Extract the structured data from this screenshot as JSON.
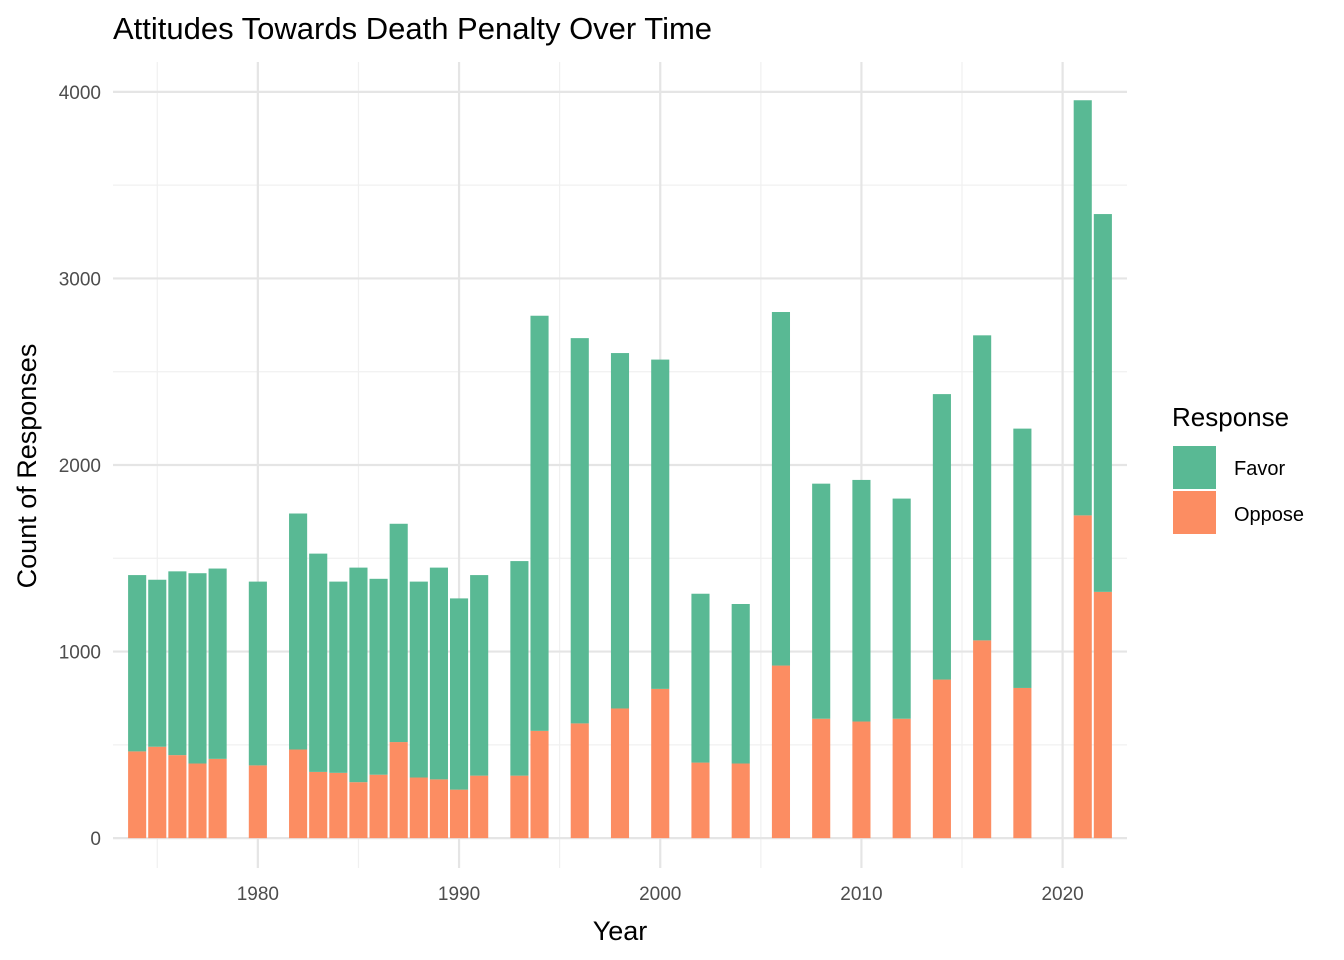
{
  "chart_data": {
    "type": "bar",
    "stacked": true,
    "title": "Attitudes Towards Death Penalty Over Time",
    "xlabel": "Year",
    "ylabel": "Count of Responses",
    "x": [
      1974,
      1975,
      1976,
      1977,
      1978,
      1980,
      1982,
      1983,
      1984,
      1985,
      1986,
      1987,
      1988,
      1989,
      1990,
      1991,
      1993,
      1994,
      1996,
      1998,
      2000,
      2002,
      2004,
      2006,
      2008,
      2010,
      2012,
      2014,
      2016,
      2018,
      2021,
      2022
    ],
    "series": [
      {
        "name": "Oppose",
        "color": "#fc8d62",
        "values": [
          465,
          490,
          445,
          400,
          425,
          390,
          475,
          355,
          350,
          300,
          340,
          515,
          325,
          315,
          260,
          335,
          335,
          575,
          615,
          695,
          800,
          405,
          400,
          925,
          640,
          625,
          640,
          850,
          1060,
          805,
          1730,
          1320
        ]
      },
      {
        "name": "Favor",
        "color": "#59b994",
        "values": [
          945,
          895,
          985,
          1020,
          1020,
          985,
          1265,
          1170,
          1025,
          1150,
          1050,
          1170,
          1050,
          1135,
          1025,
          1075,
          1150,
          2225,
          2065,
          1905,
          1765,
          905,
          855,
          1895,
          1260,
          1295,
          1180,
          1530,
          1635,
          1390,
          2225,
          2025
        ]
      }
    ],
    "xlim": [
      1972.8,
      2023.2
    ],
    "ylim": [
      -160,
      4160
    ],
    "x_ticks": [
      "1980",
      "1990",
      "2000",
      "2010",
      "2020"
    ],
    "y_ticks": [
      "0",
      "1000",
      "2000",
      "3000",
      "4000"
    ],
    "grid": true,
    "legend": {
      "title": "Response",
      "position": "right",
      "items": [
        {
          "label": "Favor",
          "color": "#59b994"
        },
        {
          "label": "Oppose",
          "color": "#fc8d62"
        }
      ]
    }
  }
}
